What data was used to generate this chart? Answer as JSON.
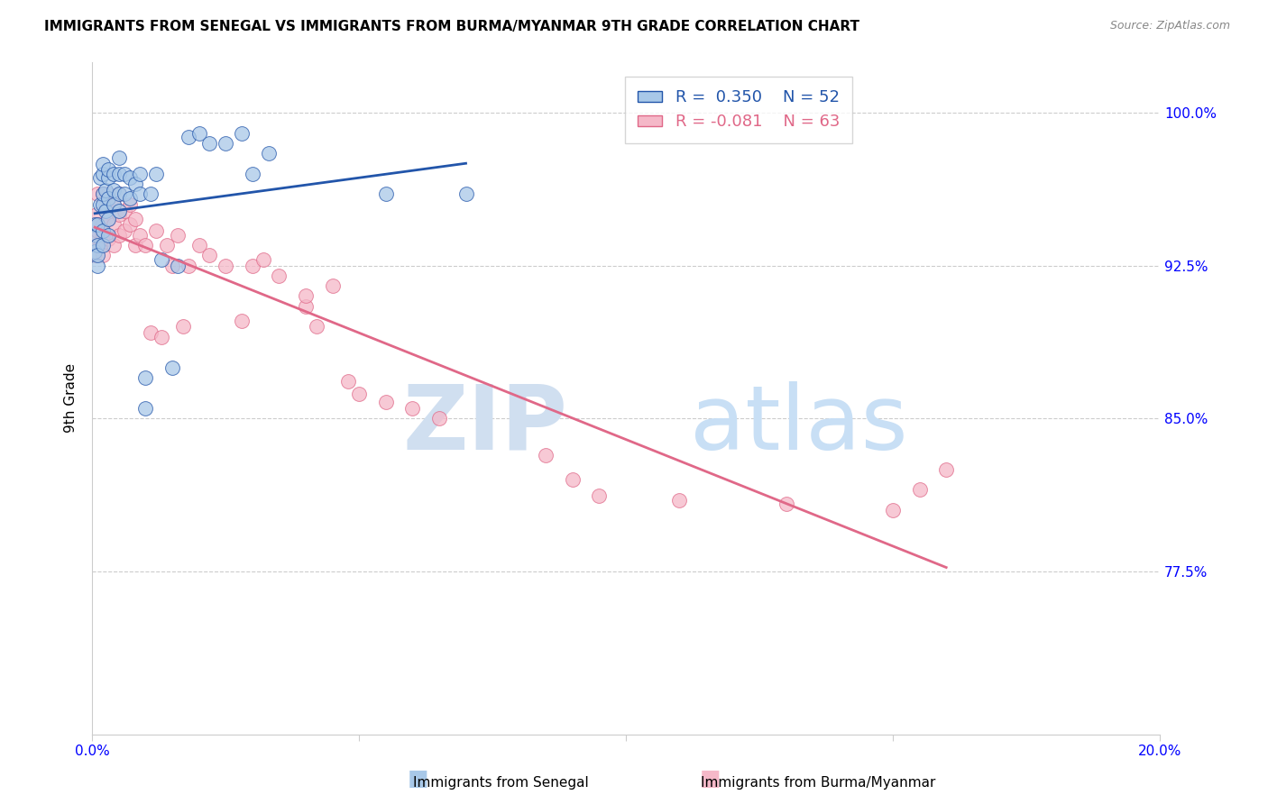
{
  "title": "IMMIGRANTS FROM SENEGAL VS IMMIGRANTS FROM BURMA/MYANMAR 9TH GRADE CORRELATION CHART",
  "source": "Source: ZipAtlas.com",
  "ylabel": "9th Grade",
  "legend_label1": "Immigrants from Senegal",
  "legend_label2": "Immigrants from Burma/Myanmar",
  "R1": 0.35,
  "N1": 52,
  "R2": -0.081,
  "N2": 63,
  "color_blue": "#a8c8e8",
  "color_pink": "#f5b8c8",
  "color_blue_line": "#2255aa",
  "color_pink_line": "#e06888",
  "watermark_zip_color": "#d0dff0",
  "watermark_atlas_color": "#c8dff5",
  "background": "#ffffff",
  "xlim": [
    0.0,
    0.2
  ],
  "ylim": [
    0.695,
    1.025
  ],
  "xtick_positions": [
    0.0,
    0.2
  ],
  "xtick_labels": [
    "0.0%",
    "20.0%"
  ],
  "ytick_positions": [
    0.775,
    0.85,
    0.925,
    1.0
  ],
  "ytick_labels": [
    "77.5%",
    "85.0%",
    "92.5%",
    "100.0%"
  ],
  "senegal_x": [
    0.0005,
    0.0005,
    0.0008,
    0.001,
    0.001,
    0.001,
    0.001,
    0.0015,
    0.0015,
    0.002,
    0.002,
    0.002,
    0.002,
    0.002,
    0.002,
    0.0025,
    0.0025,
    0.003,
    0.003,
    0.003,
    0.003,
    0.003,
    0.004,
    0.004,
    0.004,
    0.005,
    0.005,
    0.005,
    0.005,
    0.006,
    0.006,
    0.007,
    0.007,
    0.008,
    0.009,
    0.009,
    0.01,
    0.01,
    0.011,
    0.012,
    0.013,
    0.015,
    0.016,
    0.018,
    0.02,
    0.022,
    0.025,
    0.028,
    0.03,
    0.033,
    0.055,
    0.07
  ],
  "senegal_y": [
    0.932,
    0.945,
    0.94,
    0.925,
    0.935,
    0.945,
    0.93,
    0.955,
    0.968,
    0.935,
    0.942,
    0.955,
    0.96,
    0.97,
    0.975,
    0.952,
    0.962,
    0.94,
    0.948,
    0.958,
    0.968,
    0.972,
    0.955,
    0.962,
    0.97,
    0.952,
    0.96,
    0.97,
    0.978,
    0.96,
    0.97,
    0.958,
    0.968,
    0.965,
    0.96,
    0.97,
    0.855,
    0.87,
    0.96,
    0.97,
    0.928,
    0.875,
    0.925,
    0.988,
    0.99,
    0.985,
    0.985,
    0.99,
    0.97,
    0.98,
    0.96,
    0.96
  ],
  "burma_x": [
    0.0005,
    0.0005,
    0.0008,
    0.001,
    0.001,
    0.001,
    0.001,
    0.0015,
    0.002,
    0.002,
    0.002,
    0.002,
    0.0025,
    0.003,
    0.003,
    0.003,
    0.003,
    0.004,
    0.004,
    0.004,
    0.005,
    0.005,
    0.005,
    0.006,
    0.006,
    0.007,
    0.007,
    0.008,
    0.008,
    0.009,
    0.01,
    0.011,
    0.012,
    0.013,
    0.014,
    0.015,
    0.016,
    0.017,
    0.018,
    0.02,
    0.022,
    0.025,
    0.028,
    0.03,
    0.032,
    0.035,
    0.04,
    0.04,
    0.042,
    0.045,
    0.048,
    0.05,
    0.055,
    0.06,
    0.065,
    0.085,
    0.09,
    0.095,
    0.11,
    0.13,
    0.15,
    0.155,
    0.16
  ],
  "burma_y": [
    0.94,
    0.93,
    0.95,
    0.942,
    0.935,
    0.945,
    0.96,
    0.935,
    0.94,
    0.96,
    0.93,
    0.945,
    0.955,
    0.938,
    0.948,
    0.958,
    0.96,
    0.935,
    0.945,
    0.955,
    0.94,
    0.95,
    0.96,
    0.942,
    0.952,
    0.945,
    0.955,
    0.935,
    0.948,
    0.94,
    0.935,
    0.892,
    0.942,
    0.89,
    0.935,
    0.925,
    0.94,
    0.895,
    0.925,
    0.935,
    0.93,
    0.925,
    0.898,
    0.925,
    0.928,
    0.92,
    0.905,
    0.91,
    0.895,
    0.915,
    0.868,
    0.862,
    0.858,
    0.855,
    0.85,
    0.832,
    0.82,
    0.812,
    0.81,
    0.808,
    0.805,
    0.815,
    0.825
  ]
}
